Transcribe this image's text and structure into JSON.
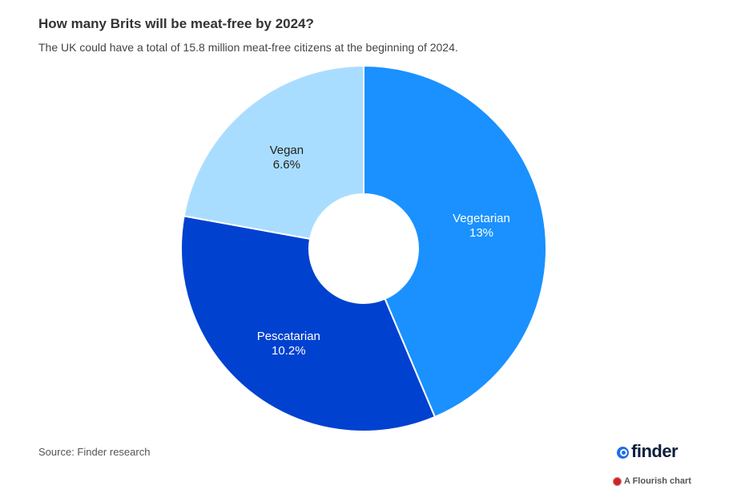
{
  "header": {
    "title": "How many Brits will be meat-free by 2024?",
    "subtitle": "The UK could have a total of 15.8 million meat-free citizens at the beginning of 2024."
  },
  "chart_data": {
    "type": "pie",
    "variant": "donut",
    "categories": [
      "Vegetarian",
      "Pescatarian",
      "Vegan"
    ],
    "values": [
      13,
      10.2,
      6.6
    ],
    "value_labels": [
      "13%",
      "10.2%",
      "6.6%"
    ],
    "unit": "%",
    "colors": [
      "#1a91ff",
      "#0041d0",
      "#a9ddff"
    ],
    "label_colors": [
      "#ffffff",
      "#ffffff",
      "#222222"
    ],
    "start_angle": "top",
    "direction": "clockwise",
    "title": "How many Brits will be meat-free by 2024?",
    "legend": "none"
  },
  "footer": {
    "source": "Source: Finder research",
    "brand": "finder",
    "flourish": "A Flourish chart"
  }
}
